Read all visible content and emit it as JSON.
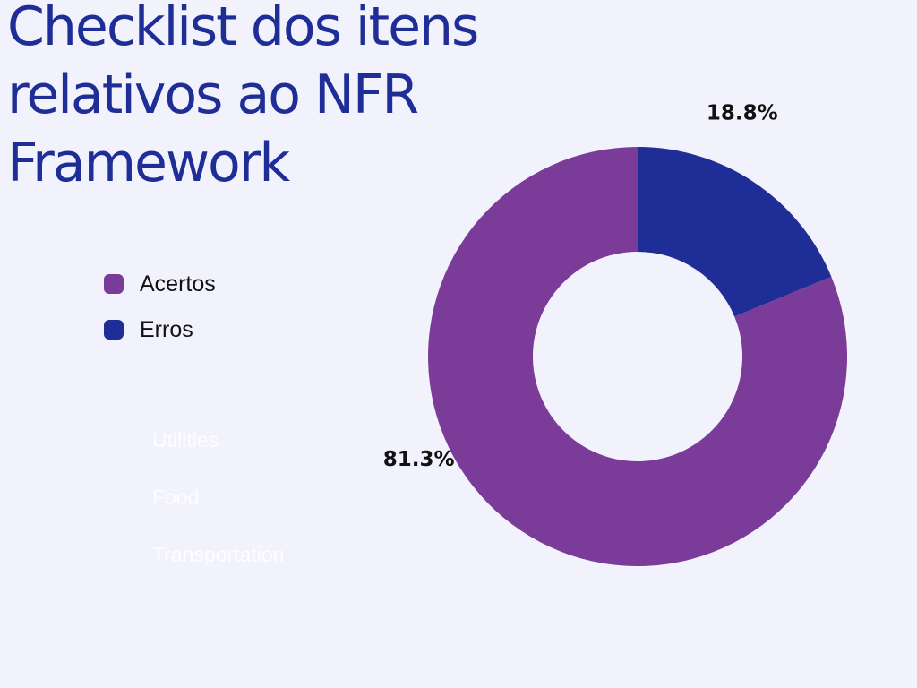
{
  "title": "Checklist dos itens relativos ao NFR Framework",
  "legend": [
    {
      "label": "Acertos",
      "color": "#7b3b98"
    },
    {
      "label": "Erros",
      "color": "#1f2d96"
    }
  ],
  "faded_labels": [
    "Utilities",
    "Food",
    "Transportation"
  ],
  "chart_data": {
    "type": "pie",
    "variant": "donut",
    "title": "Checklist dos itens relativos ao NFR Framework",
    "slices": [
      {
        "label": "Erros",
        "value": 18.8,
        "value_label": "18.8%",
        "color": "#1f2d96"
      },
      {
        "label": "Acertos",
        "value": 81.3,
        "value_label": "81.3%",
        "color": "#7b3b98"
      }
    ],
    "legend_position": "left"
  }
}
